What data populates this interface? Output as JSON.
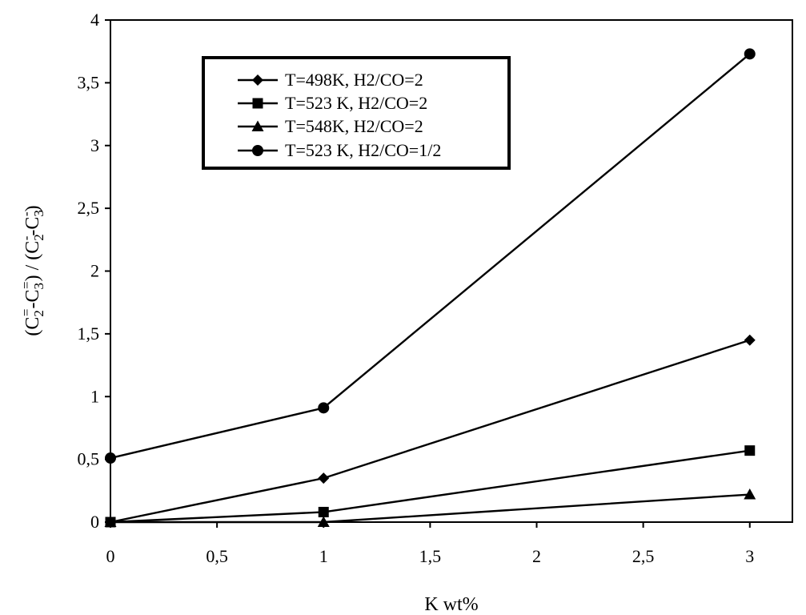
{
  "chart_data": {
    "type": "line",
    "title": "",
    "xlabel": "K wt%",
    "ylabel": {
      "parts": [
        "(C",
        "2",
        "=",
        "-C",
        "3",
        "=",
        ") / (C",
        "2",
        "-",
        "-C",
        "3",
        "-",
        ")"
      ]
    },
    "xlim": [
      0,
      3.2
    ],
    "ylim": [
      0,
      4
    ],
    "xticks": [
      {
        "v": 0,
        "label": "0"
      },
      {
        "v": 0.5,
        "label": "0,5"
      },
      {
        "v": 1,
        "label": "1"
      },
      {
        "v": 1.5,
        "label": "1,5"
      },
      {
        "v": 2,
        "label": "2"
      },
      {
        "v": 2.5,
        "label": "2,5"
      },
      {
        "v": 3,
        "label": "3"
      }
    ],
    "yticks": [
      {
        "v": 0,
        "label": "0"
      },
      {
        "v": 0.5,
        "label": "0,5"
      },
      {
        "v": 1,
        "label": "1"
      },
      {
        "v": 1.5,
        "label": "1,5"
      },
      {
        "v": 2,
        "label": "2"
      },
      {
        "v": 2.5,
        "label": "2,5"
      },
      {
        "v": 3,
        "label": "3"
      },
      {
        "v": 3.5,
        "label": "3,5"
      },
      {
        "v": 4,
        "label": "4"
      }
    ],
    "grid": false,
    "legend_position": "top-center",
    "series": [
      {
        "name": "T=498K, H2/CO=2",
        "marker": "diamond",
        "x": [
          0,
          1,
          3
        ],
        "y": [
          0.0,
          0.35,
          1.45
        ]
      },
      {
        "name": "T=523 K, H2/CO=2",
        "marker": "square",
        "x": [
          0,
          1,
          3
        ],
        "y": [
          0.0,
          0.08,
          0.57
        ]
      },
      {
        "name": "T=548K, H2/CO=2",
        "marker": "triangle",
        "x": [
          0,
          1,
          3
        ],
        "y": [
          0.0,
          0.0,
          0.22
        ]
      },
      {
        "name": "T=523 K, H2/CO=1/2",
        "marker": "circle",
        "x": [
          0,
          1,
          3
        ],
        "y": [
          0.51,
          0.91,
          3.73
        ]
      }
    ]
  }
}
